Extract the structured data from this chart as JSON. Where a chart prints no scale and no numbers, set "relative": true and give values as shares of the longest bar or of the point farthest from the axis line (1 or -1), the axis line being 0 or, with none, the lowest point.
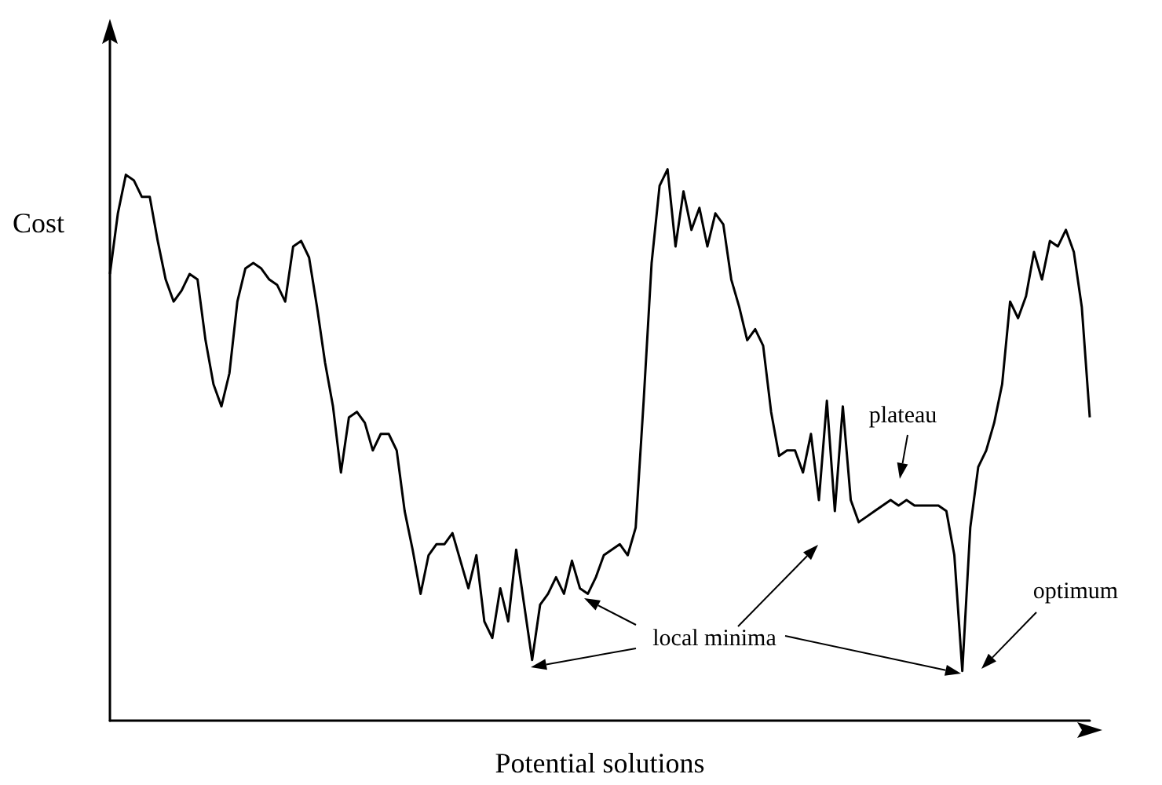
{
  "chart_data": {
    "type": "line",
    "relative": true,
    "xlabel": "Potential solutions",
    "ylabel": "Cost",
    "color": "#000000",
    "grid": false,
    "categories": [
      null,
      null,
      null,
      null,
      null,
      null,
      null,
      null,
      null,
      null,
      null,
      null,
      null,
      null,
      null,
      null,
      null,
      null,
      null,
      null,
      null,
      null,
      null,
      null,
      null,
      null,
      null,
      null,
      null,
      null,
      null,
      null,
      null,
      null,
      null,
      null,
      null,
      null,
      null,
      null,
      null,
      null,
      null,
      null,
      null,
      null,
      null,
      null,
      null,
      null,
      null,
      null,
      null,
      null,
      null,
      null,
      null,
      null,
      null,
      null,
      null,
      null,
      null,
      null,
      null,
      null,
      null,
      null,
      null,
      null,
      null,
      null,
      null,
      null,
      null,
      null,
      null,
      null,
      null,
      null,
      null,
      null,
      null,
      null,
      null,
      null,
      null,
      null,
      null,
      null,
      null,
      null,
      null,
      null,
      null,
      null,
      null,
      null,
      null,
      null,
      null,
      null,
      null,
      null,
      null,
      null,
      null,
      null,
      null,
      null,
      null,
      null,
      null,
      null,
      null,
      null,
      null,
      null,
      null,
      null,
      null,
      null,
      null,
      null
    ],
    "values": [
      0.81,
      0.92,
      0.99,
      0.98,
      0.95,
      0.95,
      0.87,
      0.8,
      0.76,
      0.78,
      0.81,
      0.8,
      0.69,
      0.61,
      0.57,
      0.63,
      0.76,
      0.82,
      0.83,
      0.82,
      0.8,
      0.79,
      0.76,
      0.86,
      0.87,
      0.84,
      0.75,
      0.65,
      0.57,
      0.45,
      0.55,
      0.56,
      0.54,
      0.49,
      0.52,
      0.52,
      0.49,
      0.38,
      0.31,
      0.23,
      0.3,
      0.32,
      0.32,
      0.34,
      0.29,
      0.24,
      0.3,
      0.18,
      0.15,
      0.24,
      0.18,
      0.31,
      0.21,
      0.11,
      0.21,
      0.23,
      0.26,
      0.23,
      0.29,
      0.24,
      0.23,
      0.26,
      0.3,
      0.31,
      0.32,
      0.3,
      0.35,
      0.58,
      0.83,
      0.97,
      1.0,
      0.86,
      0.96,
      0.89,
      0.93,
      0.86,
      0.92,
      0.9,
      0.8,
      0.75,
      0.69,
      0.71,
      0.68,
      0.56,
      0.48,
      0.49,
      0.49,
      0.45,
      0.52,
      0.4,
      0.58,
      0.38,
      0.57,
      0.4,
      0.36,
      0.37,
      0.38,
      0.39,
      0.4,
      0.39,
      0.4,
      0.39,
      0.39,
      0.39,
      0.39,
      0.38,
      0.3,
      0.09,
      0.35,
      0.46,
      0.49,
      0.54,
      0.61,
      0.76,
      0.73,
      0.77,
      0.85,
      0.8,
      0.87,
      0.86,
      0.89,
      0.85,
      0.75,
      0.55
    ],
    "annotations": [
      "local minima",
      "plateau",
      "optimum"
    ]
  }
}
